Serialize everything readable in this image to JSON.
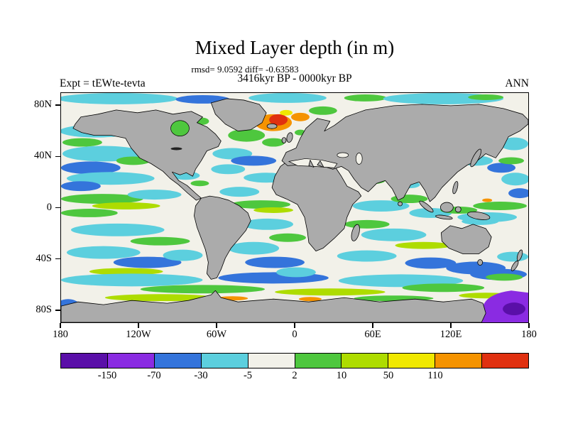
{
  "figure": {
    "title": "Mixed Layer depth (in m)",
    "stats_line": "rmsd= 9.0592 diff= -0.63583",
    "period_line": "3416kyr BP - 0000kyr BP",
    "experiment_label": "Expt = tEWte-tevta",
    "season_label": "ANN"
  },
  "chart_data": {
    "type": "heatmap",
    "title": "Mixed Layer depth (in m)",
    "subtitle": "3416kyr BP - 0000kyr BP",
    "rmsd": 9.0592,
    "diff": -0.63583,
    "experiment": "tEWte-tevta",
    "season": "ANN",
    "map": {
      "land_color": "#ababab",
      "coastline_color": "#000000",
      "x_axis_ticks": [
        {
          "label": "180",
          "lon": -180
        },
        {
          "label": "120W",
          "lon": -120
        },
        {
          "label": "60W",
          "lon": -60
        },
        {
          "label": "0",
          "lon": 0
        },
        {
          "label": "60E",
          "lon": 60
        },
        {
          "label": "120E",
          "lon": 120
        },
        {
          "label": "180",
          "lon": 180
        }
      ],
      "y_axis_ticks": [
        {
          "label": "80N",
          "lat": 80
        },
        {
          "label": "40N",
          "lat": 40
        },
        {
          "label": "0",
          "lat": 0
        },
        {
          "label": "40S",
          "lat": -40
        },
        {
          "label": "80S",
          "lat": -80
        }
      ]
    },
    "colorbar": {
      "tick_labels": [
        "-150",
        "-70",
        "-30",
        "-5",
        "2",
        "10",
        "50",
        "110"
      ],
      "levels": [
        -150,
        -70,
        -30,
        -5,
        2,
        10,
        50,
        110
      ],
      "colors": [
        "#5a0fa8",
        "#8a2be2",
        "#3474db",
        "#5ccfde",
        "#f2f1e9",
        "#4ec73e",
        "#aedc00",
        "#f0e800",
        "#f59300",
        "#e03010"
      ],
      "hatch_last_segment": true
    }
  }
}
